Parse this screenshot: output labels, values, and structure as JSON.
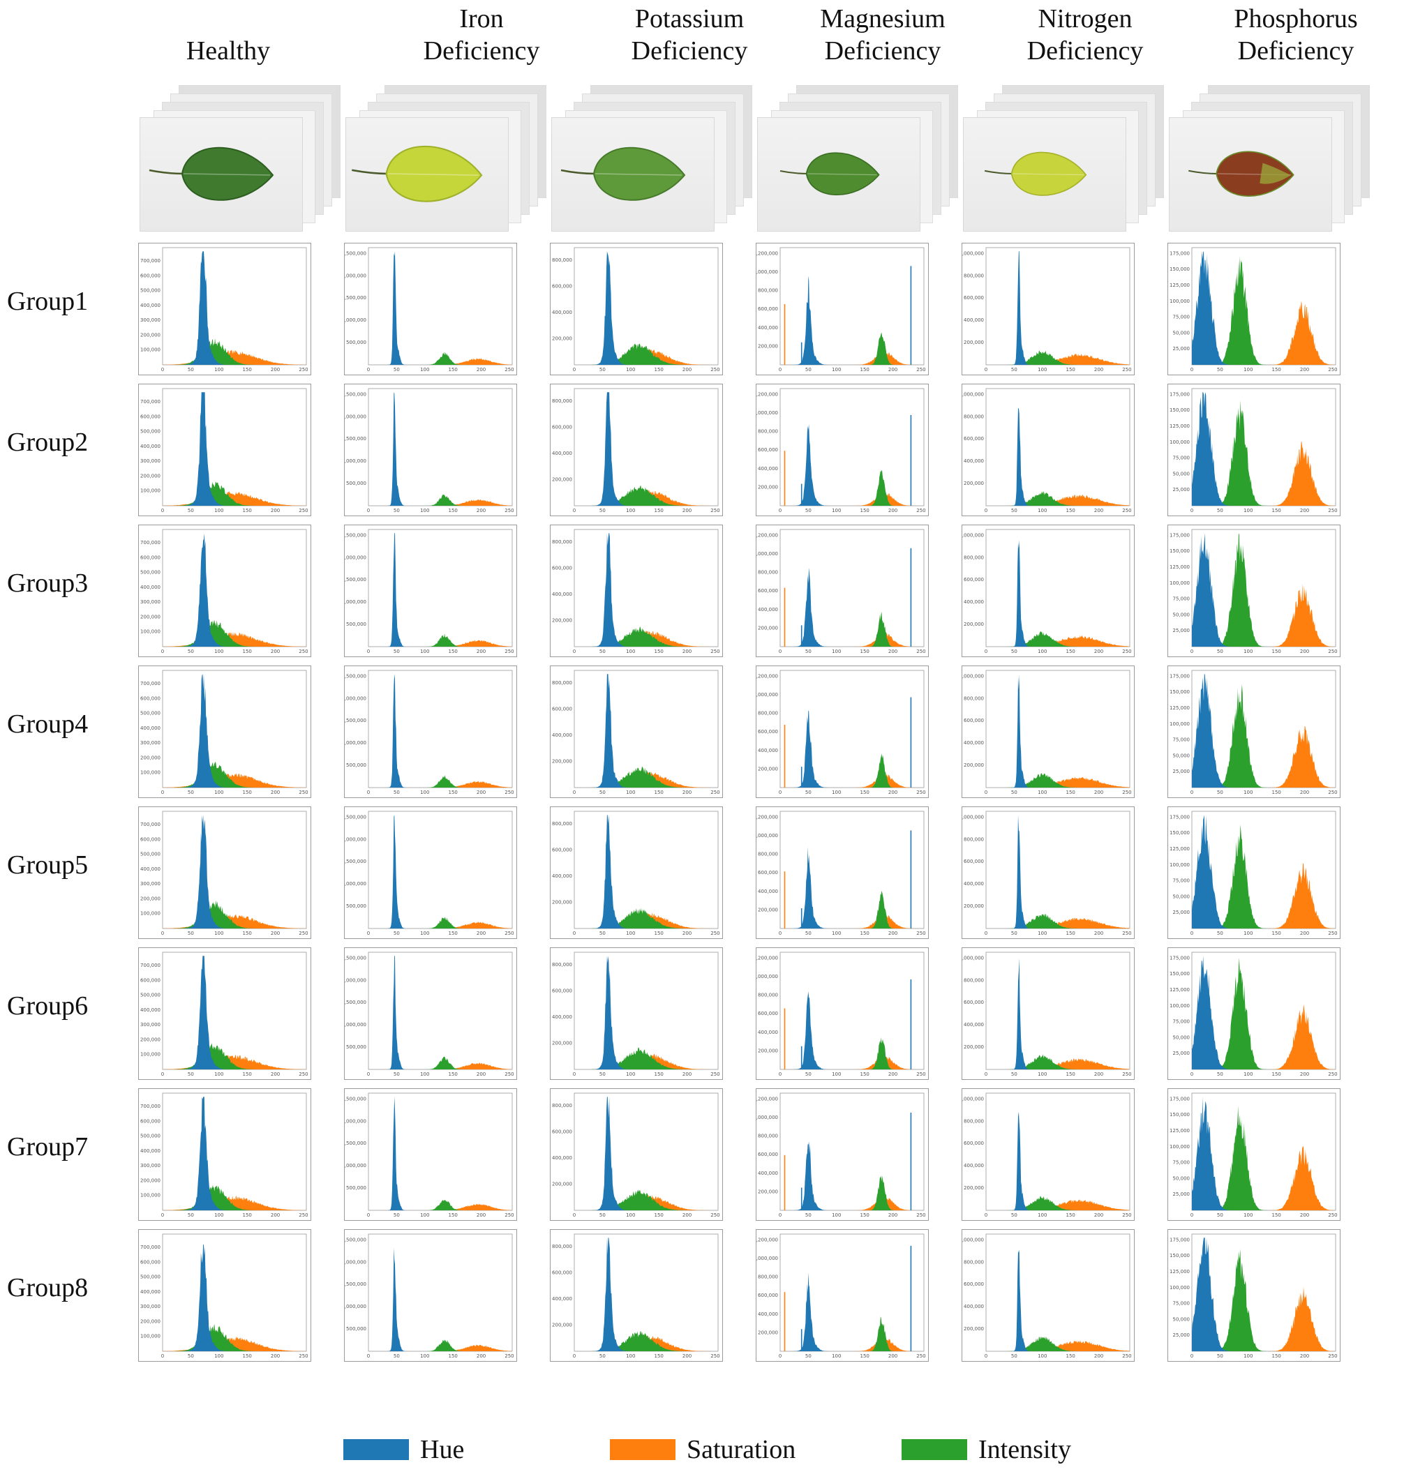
{
  "columns": [
    {
      "key": "healthy",
      "title_lines": [
        "Healthy"
      ],
      "leaf_color": "#3f7a2e",
      "leaf_edge": "#2d5e20",
      "ylim": [
        0,
        750000
      ],
      "yticks": [
        "100,000",
        "200,000",
        "300,000",
        "400,000",
        "500,000",
        "600,000",
        "700,000"
      ],
      "xticks": [
        "0",
        "50",
        "100",
        "150",
        "200",
        "250"
      ]
    },
    {
      "key": "iron",
      "title_lines": [
        "Iron",
        "Deficiency"
      ],
      "leaf_color": "#c5d63b",
      "leaf_edge": "#9fb02a",
      "ylim": [
        0,
        2500000
      ],
      "yticks": [
        "500,000",
        "1,000,000",
        "1,500,000",
        "2,000,000",
        "2,500,000"
      ],
      "xticks": [
        "0",
        "50",
        "100",
        "150",
        "200",
        "250"
      ]
    },
    {
      "key": "potassium",
      "title_lines": [
        "Potassium",
        "Deficiency"
      ],
      "leaf_color": "#5f9a3a",
      "leaf_edge": "#477a2a",
      "ylim": [
        0,
        850000
      ],
      "yticks": [
        "200,000",
        "400,000",
        "600,000",
        "800,000"
      ],
      "xticks": [
        "0",
        "50",
        "100",
        "150",
        "200",
        "250"
      ]
    },
    {
      "key": "magnesium",
      "title_lines": [
        "Magnesium",
        "Deficiency"
      ],
      "leaf_color": "#4f8c2f",
      "leaf_edge": "#3a6e22",
      "ylim": [
        0,
        1200000
      ],
      "yticks": [
        "200,000",
        "400,000",
        "600,000",
        "800,000",
        "1,000,000",
        "1,200,000"
      ],
      "xticks": [
        "0",
        "50",
        "100",
        "150",
        "200",
        "250"
      ]
    },
    {
      "key": "nitrogen",
      "title_lines": [
        "Nitrogen",
        "Deficiency"
      ],
      "leaf_color": "#c8d43c",
      "leaf_edge": "#a5b12a",
      "ylim": [
        0,
        1000000
      ],
      "yticks": [
        "200,000",
        "400,000",
        "600,000",
        "800,000",
        "1,000,000"
      ],
      "xticks": [
        "0",
        "50",
        "100",
        "150",
        "200",
        "250"
      ]
    },
    {
      "key": "phosphorus",
      "title_lines": [
        "Phosphorus",
        "Deficiency"
      ],
      "leaf_color": "#8a3d1f",
      "leaf_edge": "#6a8a2a",
      "ylim": [
        0,
        175000
      ],
      "yticks": [
        "25,000",
        "50,000",
        "75,000",
        "100,000",
        "125,000",
        "150,000",
        "175,000"
      ],
      "xticks": [
        "0",
        "50",
        "100",
        "150",
        "200",
        "250"
      ]
    }
  ],
  "rows": [
    "Group1",
    "Group2",
    "Group3",
    "Group4",
    "Group5",
    "Group6",
    "Group7",
    "Group8"
  ],
  "legend": [
    {
      "label": "Hue",
      "color": "#1f77b4"
    },
    {
      "label": "Saturation",
      "color": "#ff7f0e"
    },
    {
      "label": "Intensity",
      "color": "#2ca02c"
    }
  ],
  "chart_data": {
    "type": "area",
    "description_of_grid": "8 groups x 6 leaf classes; each panel is an HSI histogram (x: channel value 0-255, y: pixel count)",
    "x_range": [
      0,
      255
    ],
    "series_names": [
      "Hue",
      "Saturation",
      "Intensity"
    ],
    "colors": {
      "Hue": "#1f77b4",
      "Saturation": "#ff7f0e",
      "Intensity": "#2ca02c"
    },
    "approx_peaks": {
      "healthy": {
        "Hue": {
          "center": 72,
          "peak": 700000,
          "width": 5
        },
        "Intensity": {
          "center": 92,
          "peak": 160000,
          "width": 20
        },
        "Saturation": {
          "center": 125,
          "peak": 90000,
          "width": 40
        }
      },
      "iron": {
        "Hue": {
          "center": 46,
          "peak": 2400000,
          "width": 2
        },
        "Intensity": {
          "center": 135,
          "peak": 250000,
          "width": 9
        },
        "Saturation": {
          "center": 195,
          "peak": 140000,
          "width": 22
        }
      },
      "potassium": {
        "Hue": {
          "center": 60,
          "peak": 800000,
          "width": 4
        },
        "Intensity": {
          "center": 115,
          "peak": 140000,
          "width": 24
        },
        "Saturation": {
          "center": 135,
          "peak": 110000,
          "width": 30
        }
      },
      "magnesium": {
        "Hue": {
          "center": 50,
          "peak": 700000,
          "width": 4
        },
        "Intensity": {
          "center": 180,
          "peak": 350000,
          "width": 6
        },
        "Saturation": {
          "center": 185,
          "peak": 140000,
          "width": 15
        }
      },
      "nitrogen": {
        "Hue": {
          "center": 58,
          "peak": 960000,
          "width": 2
        },
        "Intensity": {
          "center": 100,
          "peak": 120000,
          "width": 18
        },
        "Saturation": {
          "center": 165,
          "peak": 90000,
          "width": 35
        }
      },
      "phosphorus": {
        "Hue": {
          "center": 22,
          "peak": 170000,
          "width": 12
        },
        "Intensity": {
          "center": 85,
          "peak": 150000,
          "width": 12
        },
        "Saturation": {
          "center": 197,
          "peak": 90000,
          "width": 15
        }
      }
    }
  }
}
